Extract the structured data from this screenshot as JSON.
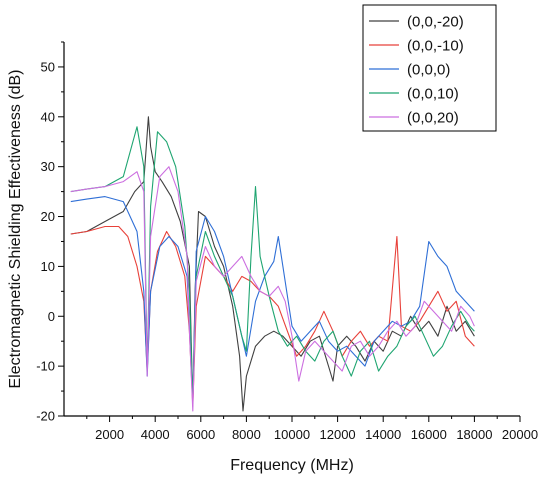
{
  "chart_data": {
    "type": "line",
    "title": "",
    "xlabel": "Frequency (MHz)",
    "ylabel": "Electromagnetic Shielding Effectiveness (dB)",
    "xlim": [
      0,
      20000
    ],
    "ylim": [
      -20,
      55
    ],
    "xticks": [
      2000,
      4000,
      6000,
      8000,
      10000,
      12000,
      14000,
      16000,
      18000,
      20000
    ],
    "yticks": [
      -20,
      -10,
      0,
      10,
      20,
      30,
      40,
      50
    ],
    "grid": false,
    "legend_position": "top-right",
    "series": [
      {
        "name": "(0,0,-20)",
        "color": "#404040",
        "points": [
          [
            300,
            16.5
          ],
          [
            1000,
            17
          ],
          [
            1800,
            19
          ],
          [
            2600,
            21
          ],
          [
            3100,
            25
          ],
          [
            3500,
            27
          ],
          [
            3700,
            40
          ],
          [
            3800,
            34
          ],
          [
            4000,
            29
          ],
          [
            4300,
            27
          ],
          [
            4700,
            24
          ],
          [
            5100,
            19
          ],
          [
            5500,
            10
          ],
          [
            5650,
            -18
          ],
          [
            5750,
            5
          ],
          [
            5900,
            21
          ],
          [
            6200,
            20
          ],
          [
            6600,
            14
          ],
          [
            7000,
            10
          ],
          [
            7400,
            2
          ],
          [
            7700,
            -8
          ],
          [
            7850,
            -19
          ],
          [
            8000,
            -12
          ],
          [
            8400,
            -6
          ],
          [
            8800,
            -4
          ],
          [
            9200,
            -3
          ],
          [
            9600,
            -4
          ],
          [
            10000,
            -6
          ],
          [
            10400,
            -8
          ],
          [
            10800,
            -5
          ],
          [
            11200,
            -4
          ],
          [
            11600,
            -10
          ],
          [
            11800,
            -13
          ],
          [
            12000,
            -6
          ],
          [
            12400,
            -4
          ],
          [
            12800,
            -6
          ],
          [
            13200,
            -9
          ],
          [
            13600,
            -5
          ],
          [
            14000,
            -7
          ],
          [
            14400,
            -3
          ],
          [
            14800,
            -4
          ],
          [
            15200,
            0
          ],
          [
            15600,
            -3
          ],
          [
            16000,
            -1
          ],
          [
            16400,
            -4
          ],
          [
            16800,
            2
          ],
          [
            17200,
            -3
          ],
          [
            17600,
            -1
          ],
          [
            18000,
            -4
          ]
        ]
      },
      {
        "name": "(0,0,-10)",
        "color": "#e8413a",
        "points": [
          [
            300,
            16.5
          ],
          [
            1000,
            17
          ],
          [
            1800,
            18
          ],
          [
            2400,
            18
          ],
          [
            2800,
            16
          ],
          [
            3200,
            10
          ],
          [
            3500,
            3
          ],
          [
            3650,
            -11
          ],
          [
            3800,
            5
          ],
          [
            4100,
            13
          ],
          [
            4500,
            17
          ],
          [
            4900,
            14
          ],
          [
            5300,
            8
          ],
          [
            5500,
            -3
          ],
          [
            5650,
            -18
          ],
          [
            5800,
            2
          ],
          [
            6200,
            12
          ],
          [
            6600,
            10
          ],
          [
            7000,
            8
          ],
          [
            7400,
            5
          ],
          [
            7800,
            8
          ],
          [
            8200,
            7
          ],
          [
            8600,
            5
          ],
          [
            9000,
            4
          ],
          [
            9400,
            2
          ],
          [
            9800,
            -3
          ],
          [
            10200,
            -8
          ],
          [
            10600,
            -6
          ],
          [
            11000,
            -3
          ],
          [
            11400,
            1
          ],
          [
            11800,
            -3
          ],
          [
            12200,
            -8
          ],
          [
            12600,
            -5
          ],
          [
            13000,
            -3
          ],
          [
            13400,
            -6
          ],
          [
            13800,
            -4
          ],
          [
            14200,
            -5
          ],
          [
            14600,
            16
          ],
          [
            14800,
            -2
          ],
          [
            15200,
            -3
          ],
          [
            15600,
            -1
          ],
          [
            16000,
            2
          ],
          [
            16400,
            5
          ],
          [
            16800,
            1
          ],
          [
            17200,
            3
          ],
          [
            17600,
            -4
          ],
          [
            18000,
            -6
          ]
        ]
      },
      {
        "name": "(0,0,0)",
        "color": "#2f6fd6",
        "points": [
          [
            300,
            23
          ],
          [
            1000,
            23.5
          ],
          [
            1800,
            24
          ],
          [
            2600,
            23
          ],
          [
            3200,
            17
          ],
          [
            3500,
            5
          ],
          [
            3650,
            -12
          ],
          [
            3800,
            5
          ],
          [
            4200,
            14
          ],
          [
            4600,
            16
          ],
          [
            5000,
            14
          ],
          [
            5400,
            8
          ],
          [
            5650,
            -17
          ],
          [
            5800,
            13
          ],
          [
            6200,
            20
          ],
          [
            6600,
            17
          ],
          [
            7000,
            12
          ],
          [
            7400,
            4
          ],
          [
            7800,
            -4
          ],
          [
            8000,
            -8
          ],
          [
            8400,
            3
          ],
          [
            8800,
            8
          ],
          [
            9200,
            11
          ],
          [
            9400,
            16
          ],
          [
            9600,
            10
          ],
          [
            10000,
            -2
          ],
          [
            10400,
            -5
          ],
          [
            10800,
            -3
          ],
          [
            11200,
            -1
          ],
          [
            11600,
            -5
          ],
          [
            12000,
            -7
          ],
          [
            12400,
            -6
          ],
          [
            12800,
            -8
          ],
          [
            13200,
            -10
          ],
          [
            13600,
            -5
          ],
          [
            14000,
            -3
          ],
          [
            14400,
            -1
          ],
          [
            14800,
            -2
          ],
          [
            15200,
            -1
          ],
          [
            15600,
            2
          ],
          [
            16000,
            15
          ],
          [
            16400,
            12
          ],
          [
            16800,
            10
          ],
          [
            17200,
            5
          ],
          [
            17600,
            3
          ],
          [
            18000,
            1
          ]
        ]
      },
      {
        "name": "(0,0,10)",
        "color": "#1fa571",
        "points": [
          [
            300,
            25
          ],
          [
            1000,
            25.5
          ],
          [
            1800,
            26
          ],
          [
            2600,
            28
          ],
          [
            3200,
            38
          ],
          [
            3500,
            30
          ],
          [
            3650,
            -11
          ],
          [
            3800,
            22
          ],
          [
            4100,
            37
          ],
          [
            4500,
            35
          ],
          [
            4900,
            30
          ],
          [
            5300,
            18
          ],
          [
            5500,
            5
          ],
          [
            5650,
            -17
          ],
          [
            5800,
            8
          ],
          [
            6200,
            17
          ],
          [
            6600,
            12
          ],
          [
            7000,
            8
          ],
          [
            7400,
            4
          ],
          [
            7800,
            -4
          ],
          [
            8000,
            -7
          ],
          [
            8200,
            12
          ],
          [
            8400,
            26
          ],
          [
            8600,
            12
          ],
          [
            9000,
            4
          ],
          [
            9400,
            -3
          ],
          [
            9800,
            -6
          ],
          [
            10200,
            -4
          ],
          [
            10600,
            -7
          ],
          [
            11000,
            -9
          ],
          [
            11400,
            -5
          ],
          [
            11800,
            -3
          ],
          [
            12200,
            -8
          ],
          [
            12600,
            -12
          ],
          [
            13000,
            -7
          ],
          [
            13400,
            -5
          ],
          [
            13800,
            -11
          ],
          [
            14200,
            -8
          ],
          [
            14600,
            -6
          ],
          [
            15000,
            -2
          ],
          [
            15400,
            0
          ],
          [
            15800,
            -4
          ],
          [
            16200,
            -8
          ],
          [
            16600,
            -6
          ],
          [
            17000,
            -2
          ],
          [
            17400,
            1
          ],
          [
            17800,
            -2
          ],
          [
            18000,
            -3
          ]
        ]
      },
      {
        "name": "(0,0,20)",
        "color": "#cc6fe0",
        "points": [
          [
            300,
            25
          ],
          [
            1000,
            25.5
          ],
          [
            1800,
            26
          ],
          [
            2600,
            27
          ],
          [
            3200,
            29
          ],
          [
            3500,
            25
          ],
          [
            3650,
            -12
          ],
          [
            3800,
            16
          ],
          [
            4200,
            28
          ],
          [
            4600,
            30
          ],
          [
            5000,
            25
          ],
          [
            5400,
            12
          ],
          [
            5500,
            -3
          ],
          [
            5650,
            -19
          ],
          [
            5800,
            7
          ],
          [
            6200,
            14
          ],
          [
            6600,
            10
          ],
          [
            7000,
            8
          ],
          [
            7400,
            10
          ],
          [
            7800,
            12
          ],
          [
            8200,
            8
          ],
          [
            8600,
            5
          ],
          [
            9000,
            4
          ],
          [
            9400,
            6
          ],
          [
            9700,
            3
          ],
          [
            10000,
            -4
          ],
          [
            10300,
            -13
          ],
          [
            10600,
            -7
          ],
          [
            11000,
            -5
          ],
          [
            11400,
            -7
          ],
          [
            11800,
            -9
          ],
          [
            12200,
            -11
          ],
          [
            12600,
            -6
          ],
          [
            13000,
            -5
          ],
          [
            13400,
            -8
          ],
          [
            13800,
            -6
          ],
          [
            14200,
            -3
          ],
          [
            14600,
            -1
          ],
          [
            15000,
            -4
          ],
          [
            15400,
            -2
          ],
          [
            15800,
            3
          ],
          [
            16200,
            1
          ],
          [
            16600,
            -1
          ],
          [
            17000,
            -3
          ],
          [
            17400,
            2
          ],
          [
            17800,
            0
          ],
          [
            18000,
            -2
          ]
        ]
      }
    ]
  }
}
